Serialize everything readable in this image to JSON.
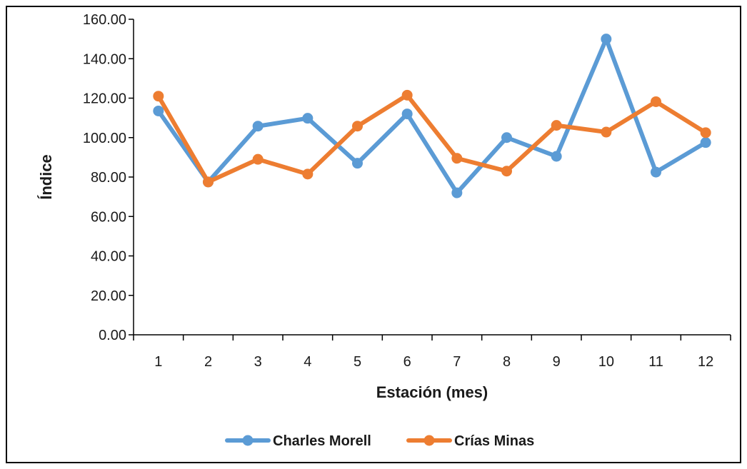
{
  "chart_data": {
    "type": "line",
    "title": "",
    "xlabel": "Estación (mes)",
    "ylabel": "Índice",
    "x": [
      "1",
      "2",
      "3",
      "4",
      "5",
      "6",
      "7",
      "8",
      "9",
      "10",
      "11",
      "12"
    ],
    "ylim": [
      0,
      160
    ],
    "yticks": [
      "0.00",
      "20.00",
      "40.00",
      "60.00",
      "80.00",
      "100.00",
      "120.00",
      "140.00",
      "160.00"
    ],
    "grid": false,
    "legend": "bottom",
    "series": [
      {
        "name": "Charles Morell",
        "color": "#5B9BD5",
        "values": [
          113.5,
          77.5,
          105.8,
          109.8,
          87.0,
          112.0,
          72.0,
          100.0,
          90.5,
          150.0,
          82.5,
          97.5
        ]
      },
      {
        "name": "Crías Minas",
        "color": "#ED7D31",
        "values": [
          121.0,
          77.5,
          89.0,
          81.5,
          105.8,
          121.5,
          89.5,
          83.0,
          106.2,
          102.8,
          118.2,
          102.5
        ]
      }
    ]
  }
}
